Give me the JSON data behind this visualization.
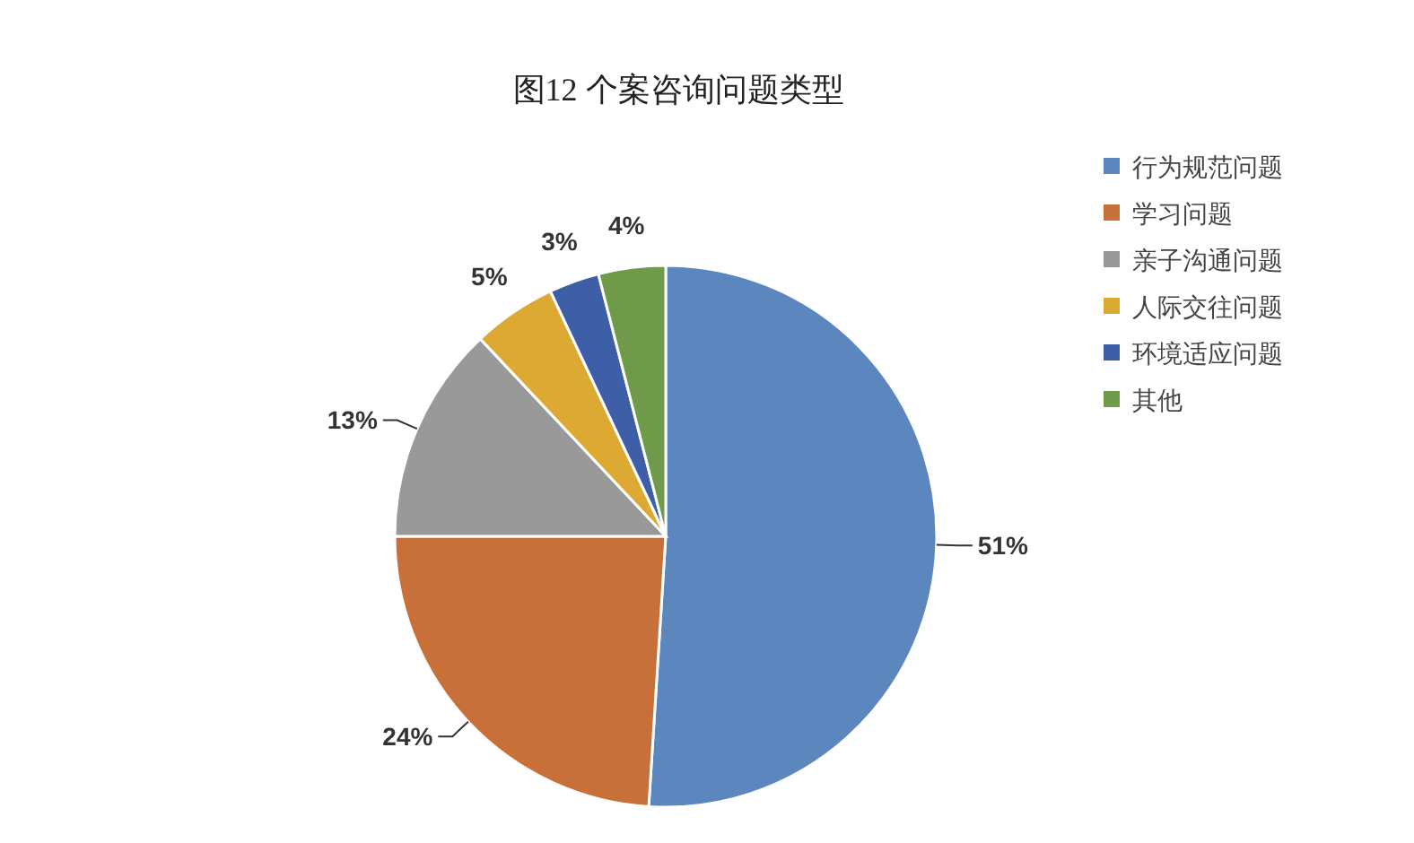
{
  "chart_data": {
    "type": "pie",
    "title": "图12  个案咨询问题类型",
    "categories": [
      "行为规范问题",
      "学习问题",
      "亲子沟通问题",
      "人际交往问题",
      "环境适应问题",
      "其他"
    ],
    "values": [
      51,
      24,
      13,
      5,
      3,
      4
    ],
    "value_labels": [
      "51%",
      "24%",
      "13%",
      "5%",
      "3%",
      "4%"
    ],
    "colors": [
      "#5b87be",
      "#c7703a",
      "#999999",
      "#dcaa33",
      "#3f5ea8",
      "#6e9a4a"
    ],
    "legend": "top right"
  }
}
